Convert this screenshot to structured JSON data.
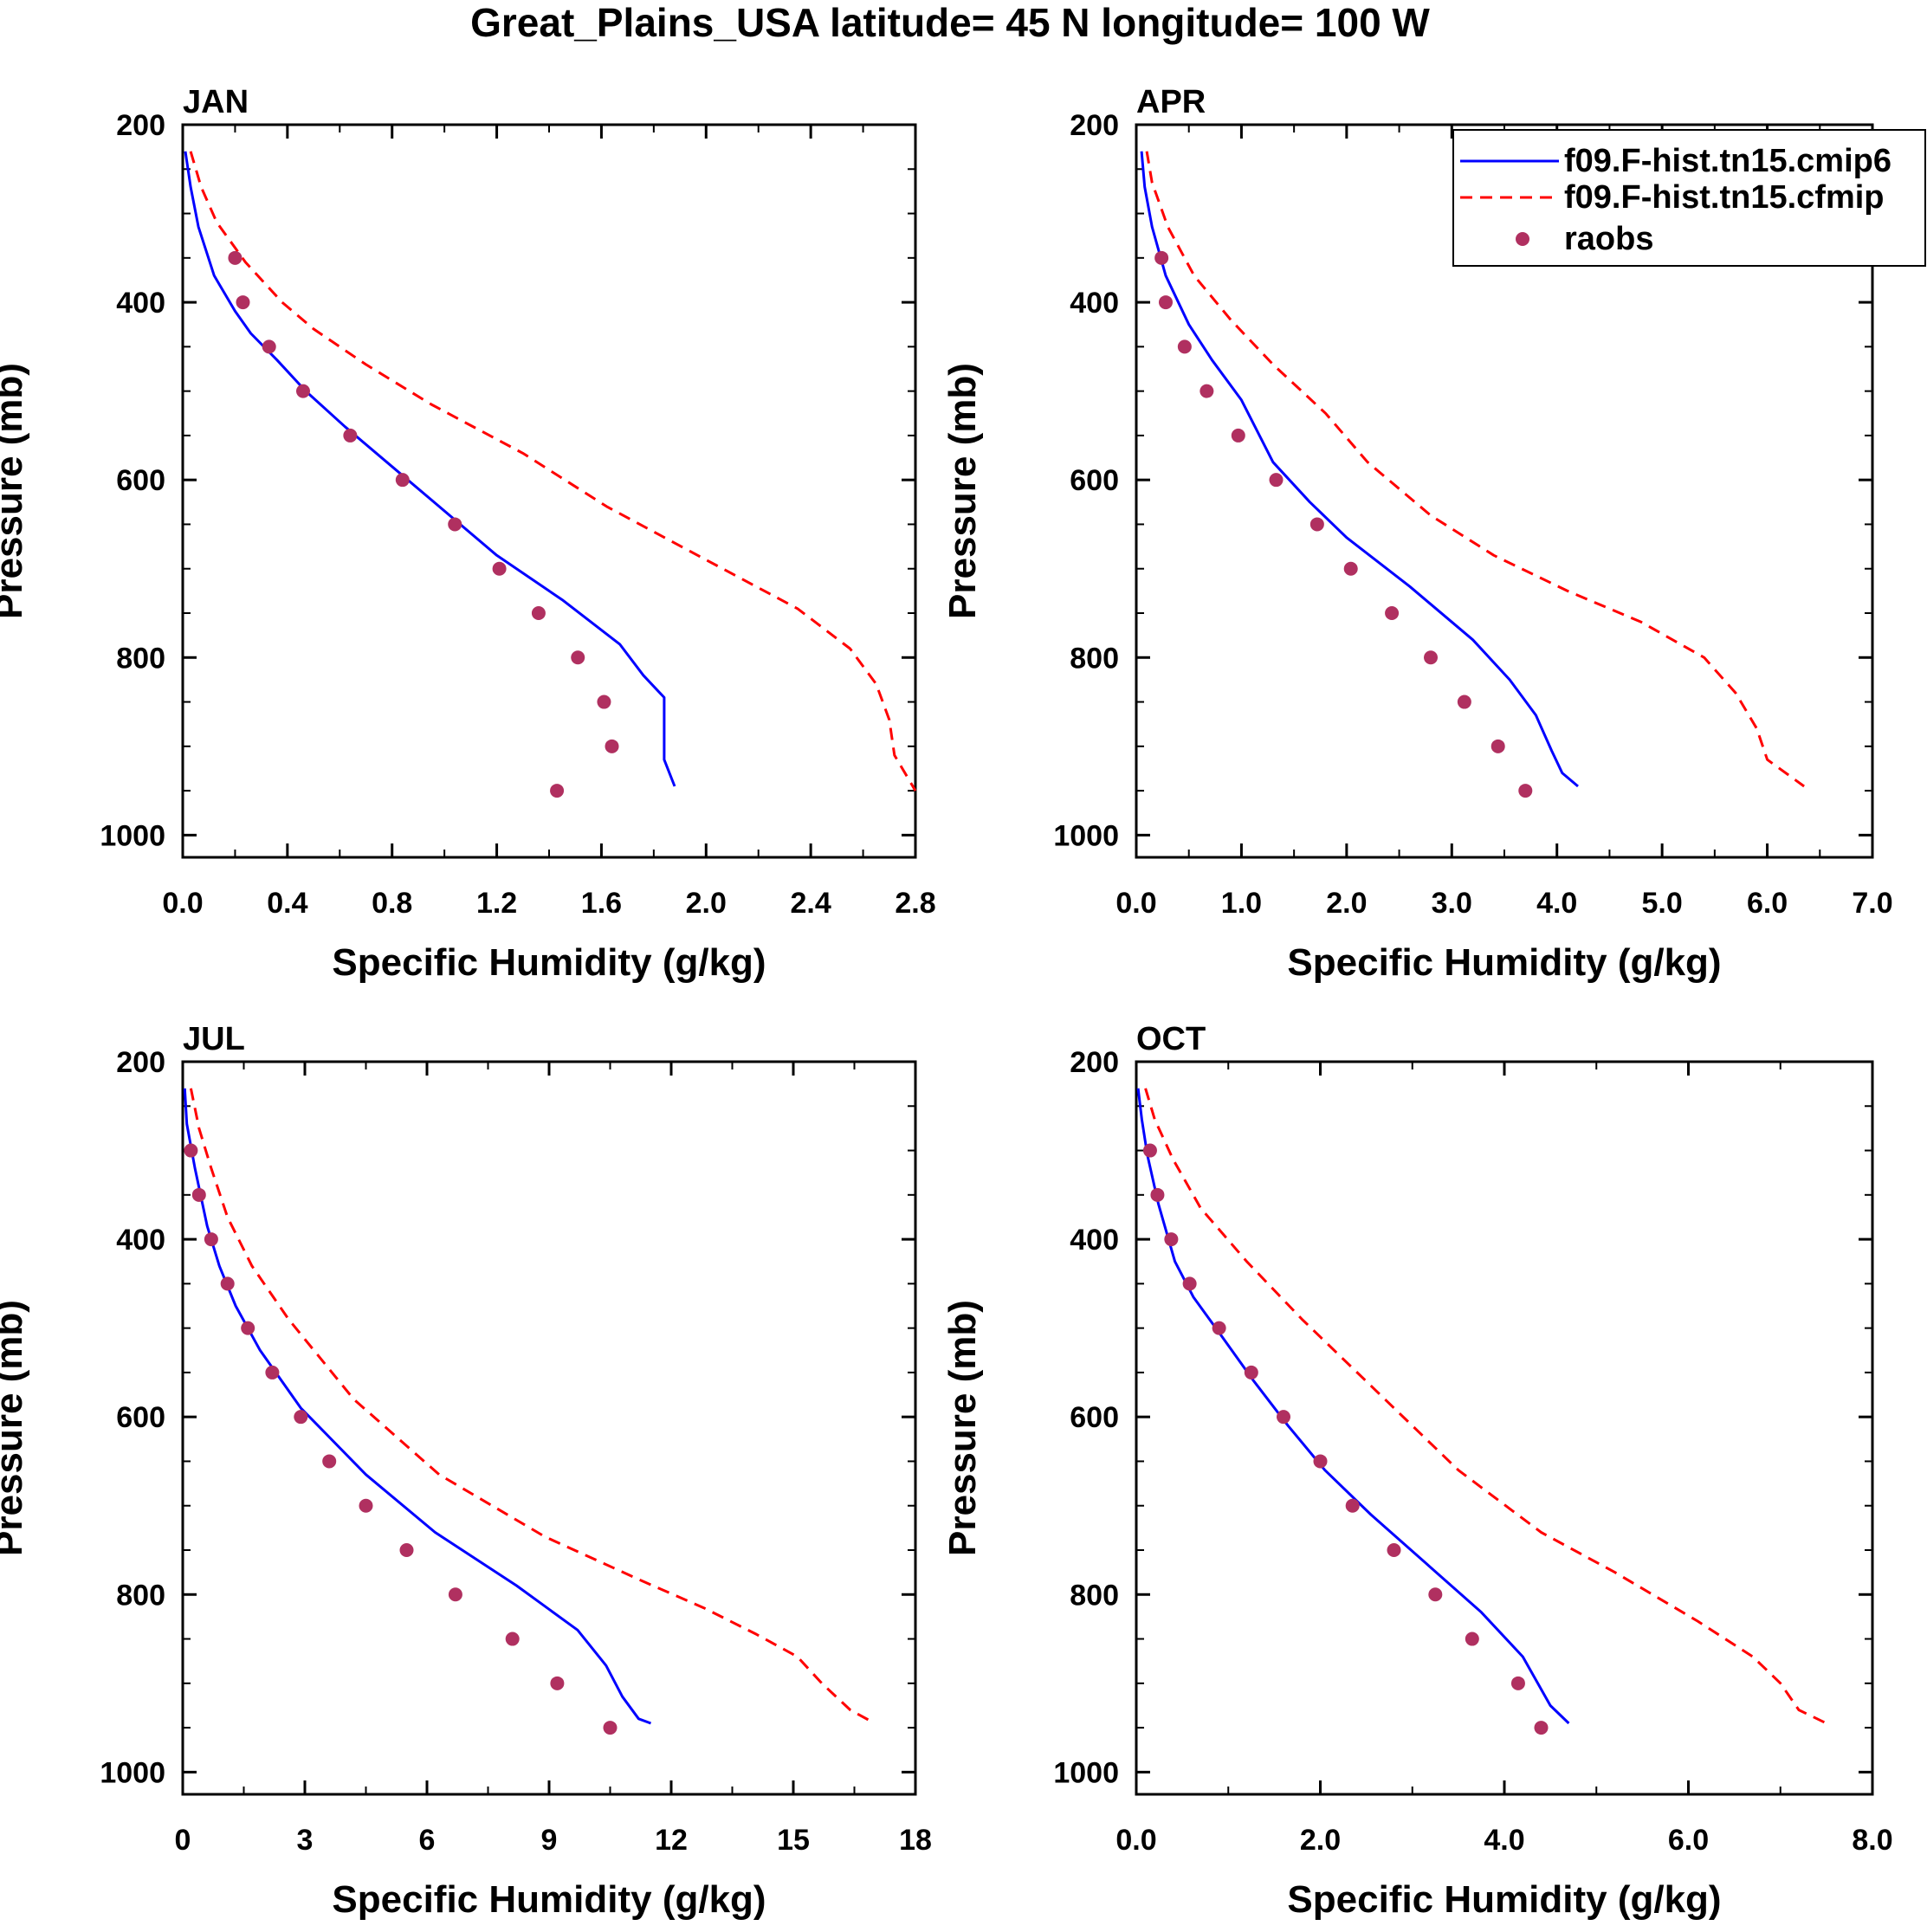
{
  "title": "Great_Plains_USA  latitude= 45 N longitude= 100 W",
  "colors": {
    "cmip6": "#0000ff",
    "cfmip": "#ff0000",
    "raobs": "#b03060",
    "axis": "#000000"
  },
  "legend": [
    {
      "label": "f09.F-hist.tn15.cmip6",
      "style": "solid",
      "color": "#0000ff"
    },
    {
      "label": "f09.F-hist.tn15.cfmip",
      "style": "dashed",
      "color": "#ff0000"
    },
    {
      "label": "raobs",
      "style": "marker",
      "color": "#b03060"
    }
  ],
  "chart_data": [
    {
      "type": "line",
      "panel_label": "JAN",
      "xlabel": "Specific Humidity (g/kg)",
      "ylabel": "Pressure (mb)",
      "xlim": [
        0,
        2.8
      ],
      "ylim": [
        200,
        1025
      ],
      "xticks": [
        "0.0",
        "0.4",
        "0.8",
        "1.2",
        "1.6",
        "2.0",
        "2.4",
        "2.8"
      ],
      "yticks": [
        "200",
        "400",
        "600",
        "800",
        "1000"
      ],
      "series": [
        {
          "name": "f09.F-hist.tn15.cmip6",
          "points": [
            [
              0.01,
              230
            ],
            [
              0.03,
              270
            ],
            [
              0.06,
              315
            ],
            [
              0.12,
              370
            ],
            [
              0.2,
              410
            ],
            [
              0.26,
              435
            ],
            [
              0.36,
              465
            ],
            [
              0.47,
              500
            ],
            [
              0.62,
              540
            ],
            [
              0.8,
              585
            ],
            [
              0.98,
              630
            ],
            [
              1.2,
              685
            ],
            [
              1.45,
              735
            ],
            [
              1.67,
              785
            ],
            [
              1.76,
              820
            ],
            [
              1.84,
              845
            ],
            [
              1.84,
              915
            ],
            [
              1.88,
              945
            ]
          ]
        },
        {
          "name": "f09.F-hist.tn15.cfmip",
          "points": [
            [
              0.03,
              230
            ],
            [
              0.07,
              270
            ],
            [
              0.13,
              310
            ],
            [
              0.24,
              355
            ],
            [
              0.38,
              400
            ],
            [
              0.5,
              430
            ],
            [
              0.7,
              470
            ],
            [
              0.95,
              515
            ],
            [
              1.3,
              570
            ],
            [
              1.62,
              630
            ],
            [
              2.0,
              690
            ],
            [
              2.35,
              745
            ],
            [
              2.55,
              790
            ],
            [
              2.65,
              830
            ],
            [
              2.7,
              870
            ],
            [
              2.72,
              910
            ],
            [
              2.8,
              950
            ]
          ]
        },
        {
          "name": "raobs",
          "points": [
            [
              0.2,
              350
            ],
            [
              0.23,
              400
            ],
            [
              0.33,
              450
            ],
            [
              0.46,
              500
            ],
            [
              0.64,
              550
            ],
            [
              0.84,
              600
            ],
            [
              1.04,
              650
            ],
            [
              1.21,
              700
            ],
            [
              1.36,
              750
            ],
            [
              1.51,
              800
            ],
            [
              1.61,
              850
            ],
            [
              1.64,
              900
            ],
            [
              1.43,
              950
            ]
          ]
        }
      ]
    },
    {
      "type": "line",
      "panel_label": "APR",
      "xlabel": "Specific Humidity (g/kg)",
      "ylabel": "Pressure (mb)",
      "xlim": [
        0,
        7
      ],
      "ylim": [
        200,
        1025
      ],
      "xticks": [
        "0.0",
        "1.0",
        "2.0",
        "3.0",
        "4.0",
        "5.0",
        "6.0",
        "7.0"
      ],
      "yticks": [
        "200",
        "400",
        "600",
        "800",
        "1000"
      ],
      "series": [
        {
          "name": "f09.F-hist.tn15.cmip6",
          "points": [
            [
              0.05,
              230
            ],
            [
              0.08,
              270
            ],
            [
              0.15,
              315
            ],
            [
              0.28,
              370
            ],
            [
              0.5,
              425
            ],
            [
              0.72,
              465
            ],
            [
              1.0,
              510
            ],
            [
              1.3,
              580
            ],
            [
              1.65,
              625
            ],
            [
              2.0,
              665
            ],
            [
              2.6,
              720
            ],
            [
              3.2,
              780
            ],
            [
              3.55,
              825
            ],
            [
              3.8,
              865
            ],
            [
              3.95,
              905
            ],
            [
              4.05,
              930
            ],
            [
              4.2,
              945
            ]
          ]
        },
        {
          "name": "f09.F-hist.tn15.cfmip",
          "points": [
            [
              0.1,
              230
            ],
            [
              0.15,
              265
            ],
            [
              0.3,
              315
            ],
            [
              0.55,
              370
            ],
            [
              0.9,
              420
            ],
            [
              1.3,
              470
            ],
            [
              1.8,
              525
            ],
            [
              2.2,
              580
            ],
            [
              2.8,
              640
            ],
            [
              3.4,
              685
            ],
            [
              4.1,
              725
            ],
            [
              4.8,
              760
            ],
            [
              5.4,
              800
            ],
            [
              5.7,
              840
            ],
            [
              5.9,
              880
            ],
            [
              6.0,
              915
            ],
            [
              6.35,
              945
            ]
          ]
        },
        {
          "name": "raobs",
          "points": [
            [
              0.24,
              350
            ],
            [
              0.28,
              400
            ],
            [
              0.46,
              450
            ],
            [
              0.67,
              500
            ],
            [
              0.97,
              550
            ],
            [
              1.33,
              600
            ],
            [
              1.72,
              650
            ],
            [
              2.04,
              700
            ],
            [
              2.43,
              750
            ],
            [
              2.8,
              800
            ],
            [
              3.12,
              850
            ],
            [
              3.44,
              900
            ],
            [
              3.7,
              950
            ]
          ]
        }
      ]
    },
    {
      "type": "line",
      "panel_label": "JUL",
      "xlabel": "Specific Humidity (g/kg)",
      "ylabel": "Pressure (mb)",
      "xlim": [
        0,
        18
      ],
      "ylim": [
        200,
        1025
      ],
      "xticks": [
        "0",
        "3",
        "6",
        "9",
        "12",
        "15",
        "18"
      ],
      "yticks": [
        "200",
        "400",
        "600",
        "800",
        "1000"
      ],
      "series": [
        {
          "name": "f09.F-hist.tn15.cmip6",
          "points": [
            [
              0.05,
              230
            ],
            [
              0.1,
              270
            ],
            [
              0.3,
              320
            ],
            [
              0.6,
              385
            ],
            [
              0.9,
              430
            ],
            [
              1.3,
              475
            ],
            [
              1.9,
              525
            ],
            [
              2.9,
              590
            ],
            [
              4.5,
              665
            ],
            [
              6.2,
              730
            ],
            [
              8.2,
              790
            ],
            [
              9.7,
              840
            ],
            [
              10.4,
              880
            ],
            [
              10.8,
              915
            ],
            [
              11.2,
              940
            ],
            [
              11.5,
              945
            ]
          ]
        },
        {
          "name": "f09.F-hist.tn15.cfmip",
          "points": [
            [
              0.2,
              230
            ],
            [
              0.4,
              275
            ],
            [
              0.7,
              320
            ],
            [
              1.1,
              375
            ],
            [
              1.7,
              430
            ],
            [
              2.6,
              490
            ],
            [
              4.2,
              580
            ],
            [
              6.3,
              665
            ],
            [
              8.9,
              735
            ],
            [
              11.3,
              785
            ],
            [
              12.8,
              815
            ],
            [
              14.1,
              845
            ],
            [
              15.1,
              870
            ],
            [
              15.7,
              900
            ],
            [
              16.4,
              930
            ],
            [
              17.0,
              945
            ]
          ]
        },
        {
          "name": "raobs",
          "points": [
            [
              0.2,
              300
            ],
            [
              0.4,
              350
            ],
            [
              0.7,
              400
            ],
            [
              1.1,
              450
            ],
            [
              1.6,
              500
            ],
            [
              2.2,
              550
            ],
            [
              2.9,
              600
            ],
            [
              3.6,
              650
            ],
            [
              4.5,
              700
            ],
            [
              5.5,
              750
            ],
            [
              6.7,
              800
            ],
            [
              8.1,
              850
            ],
            [
              9.2,
              900
            ],
            [
              10.5,
              950
            ]
          ]
        }
      ]
    },
    {
      "type": "line",
      "panel_label": "OCT",
      "xlabel": "Specific Humidity (g/kg)",
      "ylabel": "Pressure (mb)",
      "xlim": [
        0,
        8
      ],
      "ylim": [
        200,
        1025
      ],
      "xticks": [
        "0.0",
        "2.0",
        "4.0",
        "6.0",
        "8.0"
      ],
      "yticks": [
        "200",
        "400",
        "600",
        "800",
        "1000"
      ],
      "series": [
        {
          "name": "f09.F-hist.tn15.cmip6",
          "points": [
            [
              0.02,
              230
            ],
            [
              0.06,
              265
            ],
            [
              0.12,
              305
            ],
            [
              0.24,
              360
            ],
            [
              0.42,
              425
            ],
            [
              0.62,
              465
            ],
            [
              0.9,
              505
            ],
            [
              1.28,
              560
            ],
            [
              1.65,
              610
            ],
            [
              2.05,
              660
            ],
            [
              2.55,
              710
            ],
            [
              3.15,
              765
            ],
            [
              3.75,
              820
            ],
            [
              4.2,
              870
            ],
            [
              4.5,
              925
            ],
            [
              4.7,
              945
            ]
          ]
        },
        {
          "name": "f09.F-hist.tn15.cfmip",
          "points": [
            [
              0.1,
              230
            ],
            [
              0.2,
              265
            ],
            [
              0.4,
              310
            ],
            [
              0.7,
              365
            ],
            [
              1.2,
              425
            ],
            [
              1.8,
              490
            ],
            [
              2.6,
              570
            ],
            [
              3.5,
              660
            ],
            [
              4.4,
              730
            ],
            [
              5.2,
              775
            ],
            [
              6.1,
              830
            ],
            [
              6.7,
              870
            ],
            [
              7.0,
              900
            ],
            [
              7.2,
              930
            ],
            [
              7.5,
              945
            ]
          ]
        },
        {
          "name": "raobs",
          "points": [
            [
              0.15,
              300
            ],
            [
              0.23,
              350
            ],
            [
              0.38,
              400
            ],
            [
              0.58,
              450
            ],
            [
              0.9,
              500
            ],
            [
              1.25,
              550
            ],
            [
              1.6,
              600
            ],
            [
              2.0,
              650
            ],
            [
              2.35,
              700
            ],
            [
              2.8,
              750
            ],
            [
              3.25,
              800
            ],
            [
              3.65,
              850
            ],
            [
              4.15,
              900
            ],
            [
              4.4,
              950
            ]
          ]
        }
      ]
    }
  ]
}
